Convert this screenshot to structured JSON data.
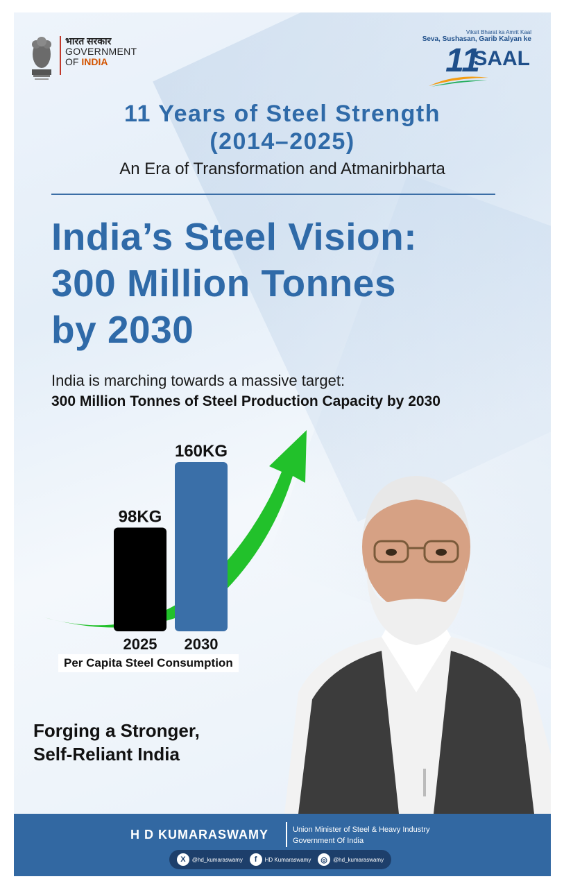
{
  "header": {
    "goi_hindi": "भारत सरकार",
    "goi_line2": "GOVERNMENT",
    "goi_line3_prefix": "OF ",
    "goi_line3_accent": "INDIA",
    "saal_tagline": "Viksit Bharat ka Amrit Kaal",
    "saal_subtitle": "Seva, Sushasan, Garib Kalyan ke",
    "saal_number": "11",
    "saal_word": "SAAL"
  },
  "title": {
    "line1": "11 Years of Steel Strength",
    "line2": "(2014–2025)",
    "subtitle": "An Era of Transformation and Atmanirbharta"
  },
  "headline": {
    "line1": "India’s Steel Vision:",
    "line2": "300 Million Tonnes",
    "line3": "by 2030"
  },
  "intro": {
    "line1": "India is marching towards a massive target:",
    "line2": "300 Million Tonnes of Steel Production Capacity by 2030"
  },
  "chart_data": {
    "type": "bar",
    "title": "Per Capita Steel Consumption",
    "categories": [
      "2025",
      "2030"
    ],
    "values": [
      98,
      160
    ],
    "data_labels": [
      "98KG",
      "160KG"
    ],
    "unit": "KG",
    "colors": [
      "#000000",
      "#3a6fa8"
    ],
    "ylim": [
      0,
      160
    ],
    "xlabel": "",
    "ylabel": ""
  },
  "tagline": {
    "line1": "Forging a Stronger,",
    "line2": "Self-Reliant India"
  },
  "footer": {
    "name": "H D KUMARASWAMY",
    "role_line1": "Union Minister of Steel & Heavy Industry",
    "role_line2": "Government Of India",
    "socials": [
      {
        "icon": "x-icon",
        "glyph": "X",
        "handle": "@hd_kumaraswamy"
      },
      {
        "icon": "facebook-icon",
        "glyph": "f",
        "handle": "HD Kumaraswamy"
      },
      {
        "icon": "instagram-icon",
        "glyph": "◎",
        "handle": "@hd_kumaraswamy"
      }
    ]
  },
  "colors": {
    "brand_blue": "#2f6aa8",
    "footer_blue": "#3268a2",
    "arrow_green": "#22c12b"
  }
}
